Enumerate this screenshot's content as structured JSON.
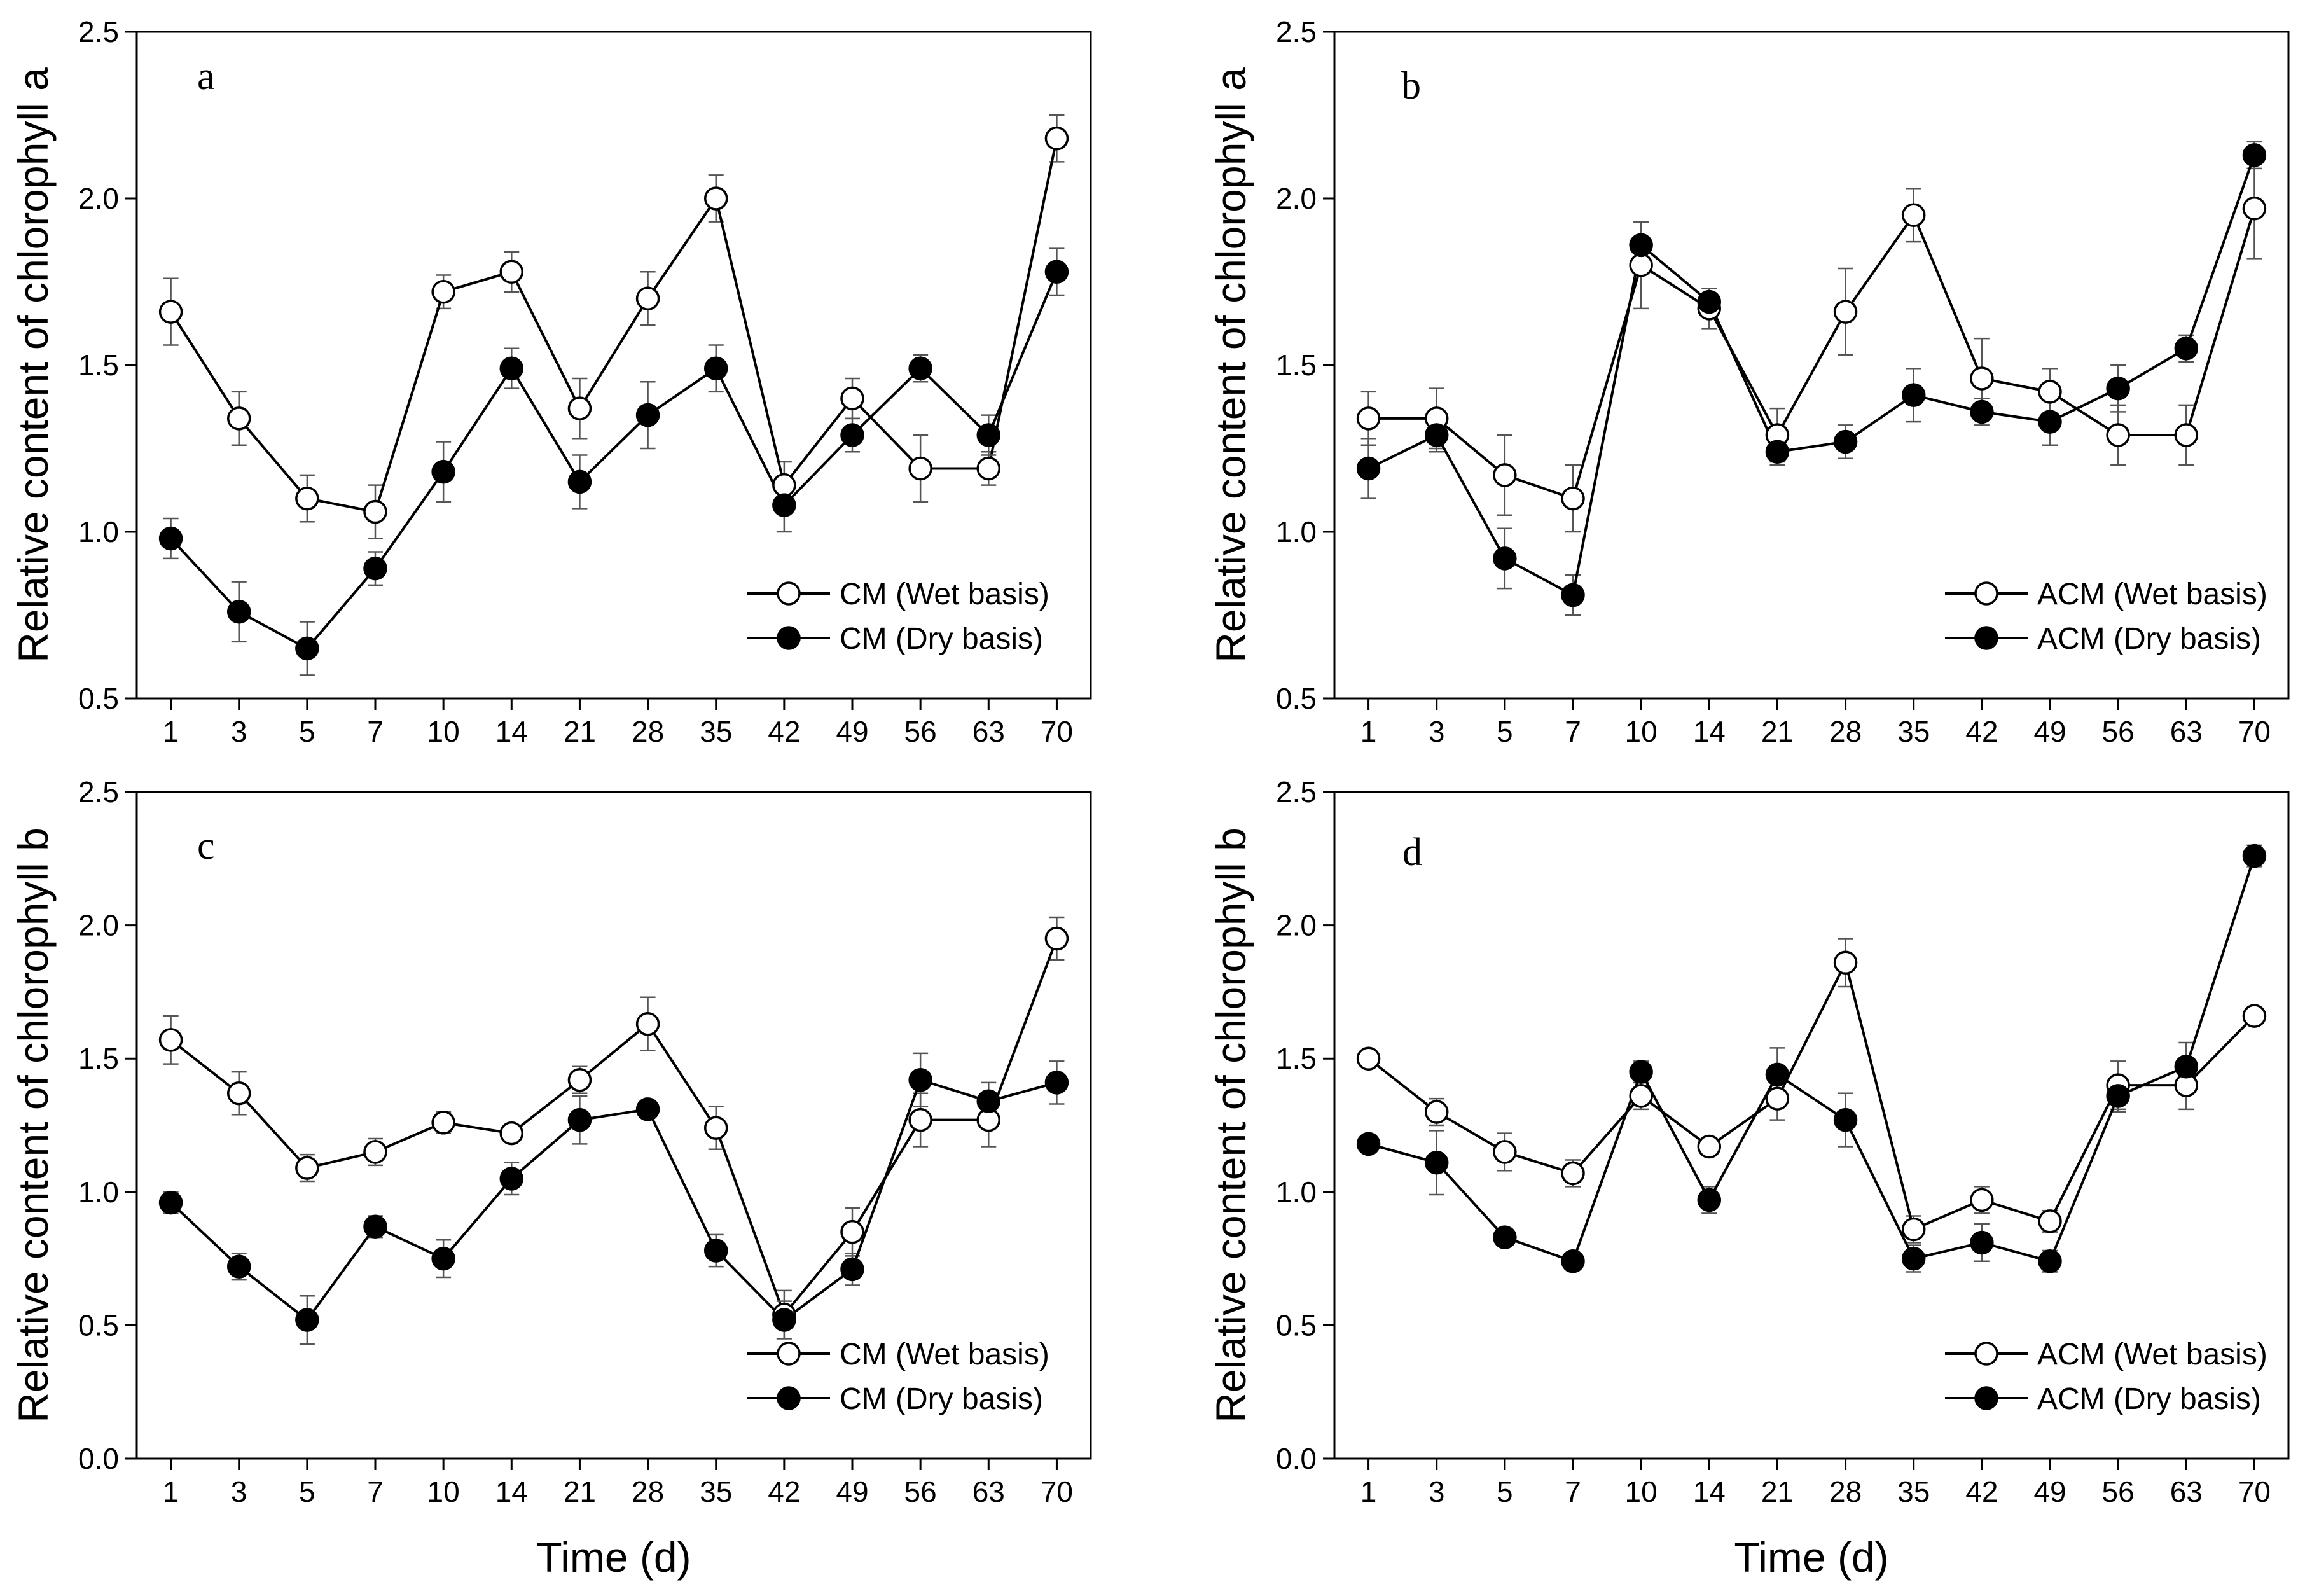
{
  "chart_data": [
    {
      "type": "line",
      "panel": "a",
      "ylabel": "Relative content of chlorophyll a",
      "xlabel": "",
      "ylim": [
        0.5,
        2.5
      ],
      "yticks": [
        "0.5",
        "1.0",
        "1.5",
        "2.0",
        "2.5"
      ],
      "categories": [
        "1",
        "3",
        "5",
        "7",
        "10",
        "14",
        "21",
        "28",
        "35",
        "42",
        "49",
        "56",
        "63",
        "70"
      ],
      "legend_position": "bottom-right",
      "series": [
        {
          "name": "CM (Wet basis)",
          "marker": "open-circle",
          "values": [
            1.66,
            1.34,
            1.1,
            1.06,
            1.72,
            1.78,
            1.37,
            1.7,
            2.0,
            1.14,
            1.4,
            1.19,
            1.19,
            2.18
          ],
          "errors": [
            0.1,
            0.08,
            0.07,
            0.08,
            0.05,
            0.06,
            0.09,
            0.08,
            0.07,
            0.07,
            0.06,
            0.1,
            0.05,
            0.07
          ]
        },
        {
          "name": "CM (Dry basis)",
          "marker": "filled-circle",
          "values": [
            0.98,
            0.76,
            0.65,
            0.89,
            1.18,
            1.49,
            1.15,
            1.35,
            1.49,
            1.08,
            1.29,
            1.49,
            1.29,
            1.78
          ],
          "errors": [
            0.06,
            0.09,
            0.08,
            0.05,
            0.09,
            0.06,
            0.08,
            0.1,
            0.07,
            0.08,
            0.05,
            0.04,
            0.06,
            0.07
          ]
        }
      ]
    },
    {
      "type": "line",
      "panel": "b",
      "ylabel": "Relative content of chlorophyll a",
      "xlabel": "",
      "ylim": [
        0.5,
        2.5
      ],
      "yticks": [
        "0.5",
        "1.0",
        "1.5",
        "2.0",
        "2.5"
      ],
      "categories": [
        "1",
        "3",
        "5",
        "7",
        "10",
        "14",
        "21",
        "28",
        "35",
        "42",
        "49",
        "56",
        "63",
        "70"
      ],
      "legend_position": "bottom-right",
      "series": [
        {
          "name": "ACM (Wet basis)",
          "marker": "open-circle",
          "values": [
            1.34,
            1.34,
            1.17,
            1.1,
            1.8,
            1.67,
            1.29,
            1.66,
            1.95,
            1.46,
            1.42,
            1.29,
            1.29,
            1.97
          ],
          "errors": [
            0.08,
            0.09,
            0.12,
            0.1,
            0.13,
            0.06,
            0.08,
            0.13,
            0.08,
            0.12,
            0.07,
            0.09,
            0.09,
            0.15
          ]
        },
        {
          "name": "ACM (Dry basis)",
          "marker": "filled-circle",
          "values": [
            1.19,
            1.29,
            0.92,
            0.81,
            1.86,
            1.69,
            1.24,
            1.27,
            1.41,
            1.36,
            1.33,
            1.43,
            1.55,
            2.13
          ],
          "errors": [
            0.09,
            0.05,
            0.09,
            0.06,
            0.07,
            0.04,
            0.04,
            0.05,
            0.08,
            0.04,
            0.07,
            0.07,
            0.04,
            0.04
          ]
        }
      ]
    },
    {
      "type": "line",
      "panel": "c",
      "ylabel": "Relative content of chlorophyll b",
      "xlabel": "Time (d)",
      "ylim": [
        0.0,
        2.5
      ],
      "yticks": [
        "0.0",
        "0.5",
        "1.0",
        "1.5",
        "2.0",
        "2.5"
      ],
      "categories": [
        "1",
        "3",
        "5",
        "7",
        "10",
        "14",
        "21",
        "28",
        "35",
        "42",
        "49",
        "56",
        "63",
        "70"
      ],
      "legend_position": "bottom-right",
      "series": [
        {
          "name": "CM (Wet basis)",
          "marker": "open-circle",
          "values": [
            1.57,
            1.37,
            1.09,
            1.15,
            1.26,
            1.22,
            1.42,
            1.63,
            1.24,
            0.54,
            0.85,
            1.27,
            1.27,
            1.95
          ],
          "errors": [
            0.09,
            0.08,
            0.05,
            0.05,
            0.04,
            0.03,
            0.05,
            0.1,
            0.08,
            0.09,
            0.09,
            0.1,
            0.1,
            0.08
          ]
        },
        {
          "name": "CM (Dry basis)",
          "marker": "filled-circle",
          "values": [
            0.96,
            0.72,
            0.52,
            0.87,
            0.75,
            1.05,
            1.27,
            1.31,
            0.78,
            0.52,
            0.71,
            1.42,
            1.34,
            1.41
          ],
          "errors": [
            0.04,
            0.05,
            0.09,
            0.04,
            0.07,
            0.06,
            0.09,
            0.03,
            0.06,
            0.07,
            0.06,
            0.1,
            0.07,
            0.08
          ]
        }
      ]
    },
    {
      "type": "line",
      "panel": "d",
      "ylabel": "Relative content of chlorophyll b",
      "xlabel": "Time (d)",
      "ylim": [
        0.0,
        2.5
      ],
      "yticks": [
        "0.0",
        "0.5",
        "1.0",
        "1.5",
        "2.0",
        "2.5"
      ],
      "categories": [
        "1",
        "3",
        "5",
        "7",
        "10",
        "14",
        "21",
        "28",
        "35",
        "42",
        "49",
        "56",
        "63",
        "70"
      ],
      "legend_position": "bottom-right",
      "series": [
        {
          "name": "ACM (Wet basis)",
          "marker": "open-circle",
          "values": [
            1.5,
            1.3,
            1.15,
            1.07,
            1.36,
            1.17,
            1.35,
            1.86,
            0.86,
            0.97,
            0.89,
            1.4,
            1.4,
            1.66
          ],
          "errors": [
            0.02,
            0.05,
            0.07,
            0.05,
            0.05,
            0.03,
            0.08,
            0.09,
            0.05,
            0.05,
            0.04,
            0.09,
            0.09,
            0.03
          ]
        },
        {
          "name": "ACM (Dry basis)",
          "marker": "filled-circle",
          "values": [
            1.18,
            1.11,
            0.83,
            0.74,
            1.45,
            0.97,
            1.44,
            1.27,
            0.75,
            0.81,
            0.74,
            1.36,
            1.47,
            2.26
          ],
          "errors": [
            0.02,
            0.12,
            0.03,
            0.02,
            0.04,
            0.05,
            0.1,
            0.1,
            0.05,
            0.07,
            0.04,
            0.06,
            0.09,
            0.04
          ]
        }
      ]
    }
  ]
}
